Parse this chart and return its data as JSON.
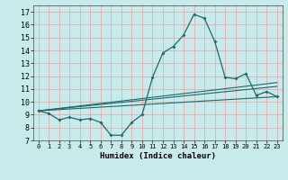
{
  "title": "",
  "xlabel": "Humidex (Indice chaleur)",
  "ylabel": "",
  "bg_color": "#c9eaea",
  "line_color": "#1a6b6b",
  "grid_color": "#e8a0a0",
  "xlim": [
    -0.5,
    23.5
  ],
  "ylim": [
    7,
    17.5
  ],
  "x_ticks": [
    0,
    1,
    2,
    3,
    4,
    5,
    6,
    7,
    8,
    9,
    10,
    11,
    12,
    13,
    14,
    15,
    16,
    17,
    18,
    19,
    20,
    21,
    22,
    23
  ],
  "y_ticks": [
    7,
    8,
    9,
    10,
    11,
    12,
    13,
    14,
    15,
    16,
    17
  ],
  "series1_x": [
    0,
    1,
    2,
    3,
    4,
    5,
    6,
    7,
    8,
    9,
    10,
    11,
    12,
    13,
    14,
    15,
    16,
    17,
    18,
    19,
    20,
    21,
    22,
    23
  ],
  "series1_y": [
    9.3,
    9.1,
    8.6,
    8.8,
    8.6,
    8.7,
    8.4,
    7.4,
    7.4,
    8.4,
    9.0,
    11.9,
    13.8,
    14.3,
    15.2,
    16.8,
    16.5,
    14.7,
    11.9,
    11.8,
    12.2,
    10.5,
    10.8,
    10.4
  ],
  "series2_x": [
    0,
    23
  ],
  "series2_y": [
    9.3,
    11.5
  ],
  "series3_x": [
    0,
    23
  ],
  "series3_y": [
    9.3,
    10.4
  ],
  "series4_x": [
    0,
    23
  ],
  "series4_y": [
    9.3,
    11.2
  ]
}
